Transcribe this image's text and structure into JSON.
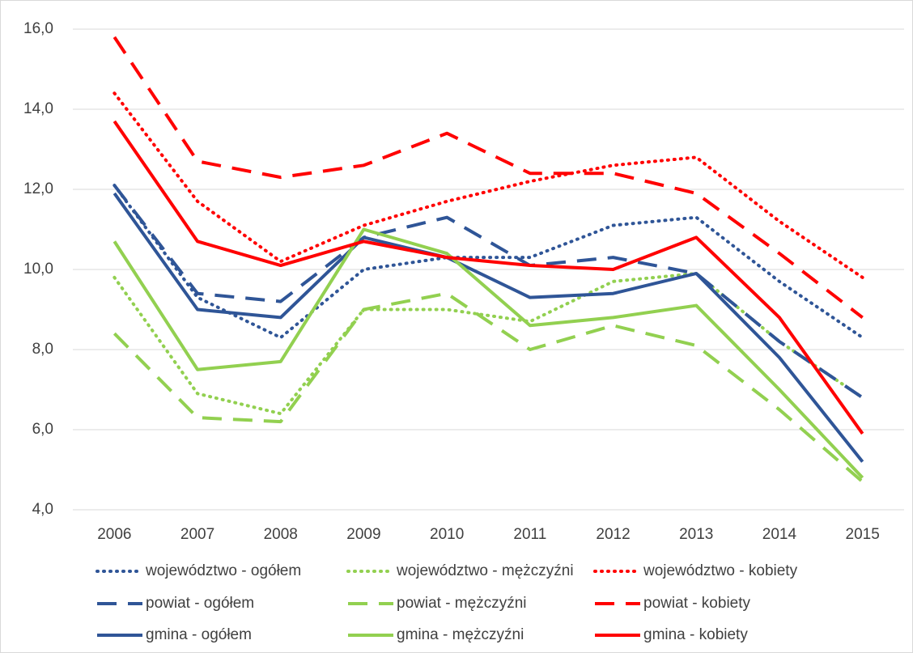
{
  "chart_data": {
    "type": "line",
    "categories": [
      "2006",
      "2007",
      "2008",
      "2009",
      "2010",
      "2011",
      "2012",
      "2013",
      "2014",
      "2015"
    ],
    "ylim": [
      4,
      16
    ],
    "yticks": [
      {
        "value": 4,
        "label": "4,0"
      },
      {
        "value": 6,
        "label": "6,0"
      },
      {
        "value": 8,
        "label": "8,0"
      },
      {
        "value": 10,
        "label": "10,0"
      },
      {
        "value": 12,
        "label": "12,0"
      },
      {
        "value": 14,
        "label": "14,0"
      },
      {
        "value": 16,
        "label": "16,0"
      }
    ],
    "grid": true,
    "legend": "bottom",
    "series": [
      {
        "name": "województwo - ogółem",
        "color": "#2f5597",
        "dash": "dotted",
        "values": [
          12.1,
          9.3,
          8.3,
          10.0,
          10.3,
          10.3,
          11.1,
          11.3,
          9.7,
          8.3
        ]
      },
      {
        "name": "województwo - mężczyźni",
        "color": "#92d050",
        "dash": "dotted",
        "values": [
          9.8,
          6.9,
          6.4,
          9.0,
          9.0,
          8.7,
          9.7,
          9.9,
          8.2,
          6.8
        ]
      },
      {
        "name": "województwo - kobiety",
        "color": "#ff0000",
        "dash": "dotted",
        "values": [
          14.4,
          11.7,
          10.2,
          11.1,
          11.7,
          12.2,
          12.6,
          12.8,
          11.2,
          9.8
        ]
      },
      {
        "name": "powiat - ogółem",
        "color": "#2f5597",
        "dash": "dashed",
        "values": [
          12.1,
          9.4,
          9.2,
          10.8,
          11.3,
          10.1,
          10.3,
          9.9,
          8.2,
          6.8
        ]
      },
      {
        "name": "powiat - mężczyźni",
        "color": "#92d050",
        "dash": "dashed",
        "values": [
          8.4,
          6.3,
          6.2,
          9.0,
          9.4,
          8.0,
          8.6,
          8.1,
          6.5,
          4.7
        ]
      },
      {
        "name": "powiat - kobiety",
        "color": "#ff0000",
        "dash": "dashed",
        "values": [
          15.8,
          12.7,
          12.3,
          12.6,
          13.4,
          12.4,
          12.4,
          11.9,
          10.4,
          8.8
        ]
      },
      {
        "name": "gmina - ogółem",
        "color": "#2f5597",
        "dash": "solid",
        "values": [
          11.9,
          9.0,
          8.8,
          10.8,
          10.3,
          9.3,
          9.4,
          9.9,
          7.8,
          5.2
        ]
      },
      {
        "name": "gmina - mężczyźni",
        "color": "#92d050",
        "dash": "solid",
        "values": [
          10.7,
          7.5,
          7.7,
          11.0,
          10.4,
          8.6,
          8.8,
          9.1,
          7.0,
          4.8
        ]
      },
      {
        "name": "gmina - kobiety",
        "color": "#ff0000",
        "dash": "solid",
        "values": [
          13.7,
          10.7,
          10.1,
          10.7,
          10.3,
          10.1,
          10.0,
          10.8,
          8.8,
          5.9
        ]
      }
    ]
  }
}
